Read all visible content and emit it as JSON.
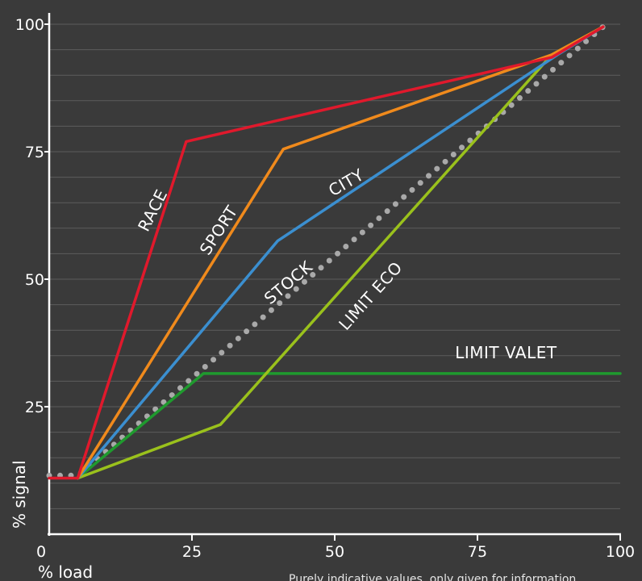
{
  "chart_data": {
    "type": "line",
    "title": "",
    "xlabel": "% load",
    "ylabel": "% signal",
    "xlim": [
      0,
      100
    ],
    "ylim": [
      0,
      100
    ],
    "x_ticks": [
      0,
      25,
      50,
      75,
      100
    ],
    "y_ticks": [
      25,
      50,
      75,
      100
    ],
    "x_tick_labels": [
      "0",
      "25",
      "50",
      "75",
      "100"
    ],
    "y_tick_labels": [
      "25",
      "50",
      "75",
      "100"
    ],
    "grid": "horizontal",
    "legend": "inline",
    "note": "Purely indicative values, only given for information",
    "series": [
      {
        "name": "STOCK",
        "color": "#a9a9a9",
        "style": "dotted",
        "points": [
          [
            0,
            11.5
          ],
          [
            5,
            11.5
          ],
          [
            97,
            99.5
          ]
        ]
      },
      {
        "name": "LIMIT VALET",
        "color": "#1f9a2e",
        "style": "solid",
        "points": [
          [
            5,
            11
          ],
          [
            27,
            31.5
          ],
          [
            100,
            31.5
          ]
        ]
      },
      {
        "name": "LIMIT ECO",
        "color": "#9ac11c",
        "style": "solid",
        "points": [
          [
            5,
            11
          ],
          [
            30,
            21.5
          ],
          [
            88,
            94
          ],
          [
            97,
            99.5
          ]
        ]
      },
      {
        "name": "CITY",
        "color": "#3b8fd0",
        "style": "solid",
        "points": [
          [
            5,
            11
          ],
          [
            40,
            57.5
          ],
          [
            89,
            94
          ],
          [
            97,
            99.5
          ]
        ]
      },
      {
        "name": "SPORT",
        "color": "#f08a1c",
        "style": "solid",
        "points": [
          [
            5,
            11
          ],
          [
            41,
            75.5
          ],
          [
            88,
            94
          ],
          [
            97,
            99.5
          ]
        ]
      },
      {
        "name": "RACE",
        "color": "#e0192c",
        "style": "solid",
        "points": [
          [
            0,
            11
          ],
          [
            5,
            11
          ],
          [
            24,
            77
          ],
          [
            88,
            93.5
          ],
          [
            97,
            99.5
          ]
        ]
      }
    ],
    "annotations": [
      {
        "text": "RACE",
        "series": "RACE",
        "x": 19,
        "y": 63,
        "angle": -63
      },
      {
        "text": "SPORT",
        "series": "SPORT",
        "x": 30.5,
        "y": 59,
        "angle": -57
      },
      {
        "text": "CITY",
        "series": "CITY",
        "x": 52.5,
        "y": 68,
        "angle": -30
      },
      {
        "text": "STOCK",
        "series": "STOCK",
        "x": 42.5,
        "y": 48.5,
        "angle": -40
      },
      {
        "text": "LIMIT ECO",
        "series": "LIMIT ECO",
        "x": 57,
        "y": 46,
        "angle": -48
      },
      {
        "text": "LIMIT VALET",
        "series": "LIMIT VALET",
        "x": 80,
        "y": 34.5,
        "angle": 0
      }
    ]
  }
}
